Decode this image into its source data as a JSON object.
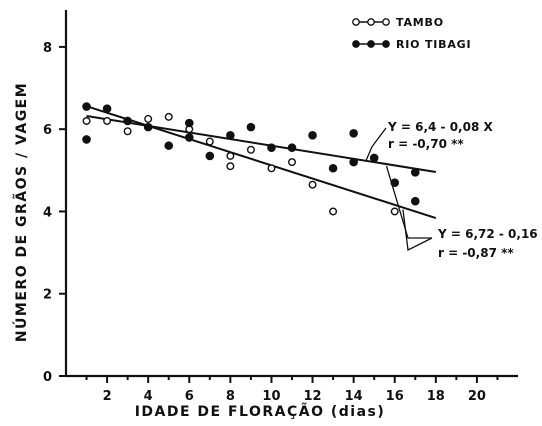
{
  "chart_data": {
    "type": "scatter",
    "title": "",
    "xlabel": "IDADE DE FLORAÇÃO (dias)",
    "ylabel": "NÚMERO DE GRÃOS / VAGEM",
    "xlim": [
      0,
      22
    ],
    "ylim": [
      0,
      8.8
    ],
    "x_ticks": [
      2,
      4,
      6,
      8,
      10,
      12,
      14,
      16,
      18,
      20
    ],
    "y_ticks": [
      0,
      2,
      4,
      6,
      8
    ],
    "grid": false,
    "legend_position": "top-right",
    "series": [
      {
        "name": "TAMBO",
        "marker": "open-circle",
        "points": [
          {
            "x": 1,
            "y": 6.2
          },
          {
            "x": 2,
            "y": 6.2
          },
          {
            "x": 3,
            "y": 5.95
          },
          {
            "x": 4,
            "y": 6.25
          },
          {
            "x": 5,
            "y": 6.3
          },
          {
            "x": 6,
            "y": 6.0
          },
          {
            "x": 7,
            "y": 5.7
          },
          {
            "x": 8,
            "y": 5.35
          },
          {
            "x": 8,
            "y": 5.1
          },
          {
            "x": 9,
            "y": 5.5
          },
          {
            "x": 10,
            "y": 5.05
          },
          {
            "x": 11,
            "y": 5.2
          },
          {
            "x": 12,
            "y": 4.65
          },
          {
            "x": 13,
            "y": 4.0
          },
          {
            "x": 16,
            "y": 4.0
          }
        ],
        "regression": {
          "intercept": 6.72,
          "slope": -0.16,
          "x_range": [
            1,
            18
          ]
        }
      },
      {
        "name": "RIO TIBAGI",
        "marker": "filled-circle",
        "points": [
          {
            "x": 1,
            "y": 6.55
          },
          {
            "x": 1,
            "y": 5.75
          },
          {
            "x": 2,
            "y": 6.5
          },
          {
            "x": 3,
            "y": 6.2
          },
          {
            "x": 4,
            "y": 6.05
          },
          {
            "x": 5,
            "y": 5.6
          },
          {
            "x": 6,
            "y": 6.15
          },
          {
            "x": 6,
            "y": 5.8
          },
          {
            "x": 7,
            "y": 5.35
          },
          {
            "x": 8,
            "y": 5.85
          },
          {
            "x": 9,
            "y": 6.05
          },
          {
            "x": 10,
            "y": 5.55
          },
          {
            "x": 11,
            "y": 5.55
          },
          {
            "x": 12,
            "y": 5.85
          },
          {
            "x": 13,
            "y": 5.05
          },
          {
            "x": 14,
            "y": 5.9
          },
          {
            "x": 14,
            "y": 5.2
          },
          {
            "x": 15,
            "y": 5.3
          },
          {
            "x": 16,
            "y": 4.7
          },
          {
            "x": 17,
            "y": 4.95
          },
          {
            "x": 17,
            "y": 4.25
          }
        ],
        "regression": {
          "intercept": 6.4,
          "slope": -0.08,
          "x_range": [
            1,
            18
          ]
        }
      }
    ],
    "annotations": [
      {
        "series": "RIO TIBAGI",
        "equation": "Y = 6,4 - 0,08 X",
        "r": "r = -0,70 **"
      },
      {
        "series": "TAMBO",
        "equation": "Y = 6,72 - 0,16 X",
        "r": "r = -0,87 **"
      }
    ]
  }
}
